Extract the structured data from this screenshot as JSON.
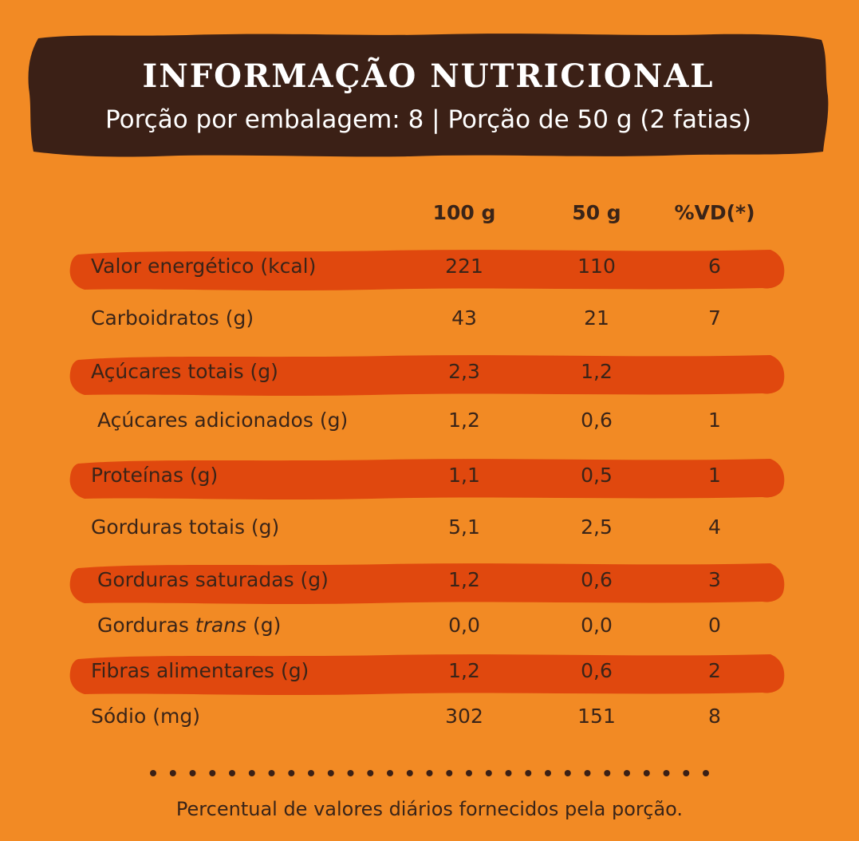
{
  "header": {
    "title": "INFORMAÇÃO NUTRICIONAL",
    "subtitle": "Porção por embalagem: 8 | Porção de 50 g (2 fatias)"
  },
  "columns": {
    "per_100g": "100 g",
    "per_50g": "50 g",
    "vd": "%VD(*)"
  },
  "rows": [
    {
      "label": "Valor energético (kcal)",
      "v100": "221",
      "v50": "110",
      "vd": "6",
      "highlighted": true,
      "indent": false
    },
    {
      "label": "Carboidratos (g)",
      "v100": "43",
      "v50": "21",
      "vd": "7",
      "highlighted": false,
      "indent": false
    },
    {
      "label": "Açúcares totais (g)",
      "v100": "2,3",
      "v50": "1,2",
      "vd": "",
      "highlighted": true,
      "indent": false
    },
    {
      "label": "Açúcares adicionados (g)",
      "v100": "1,2",
      "v50": "0,6",
      "vd": "1",
      "highlighted": false,
      "indent": true
    },
    {
      "label": "Proteínas (g)",
      "v100": "1,1",
      "v50": "0,5",
      "vd": "1",
      "highlighted": true,
      "indent": false
    },
    {
      "label": "Gorduras totais (g)",
      "v100": "5,1",
      "v50": "2,5",
      "vd": "4",
      "highlighted": false,
      "indent": false
    },
    {
      "label": "Gorduras saturadas (g)",
      "v100": "1,2",
      "v50": "0,6",
      "vd": "3",
      "highlighted": true,
      "indent": true
    },
    {
      "label_prefix": "Gorduras ",
      "label_italic": "trans",
      "label_suffix": " (g)",
      "v100": "0,0",
      "v50": "0,0",
      "vd": "0",
      "highlighted": false,
      "indent": true
    },
    {
      "label": "Fibras alimentares (g)",
      "v100": "1,2",
      "v50": "0,6",
      "vd": "2",
      "highlighted": true,
      "indent": false
    },
    {
      "label": "Sódio (mg)",
      "v100": "302",
      "v50": "151",
      "vd": "8",
      "highlighted": false,
      "indent": false
    }
  ],
  "footnote": "Percentual de valores diários fornecidos pela porção.",
  "colors": {
    "background": "#f28a24",
    "header_band": "#3b2016",
    "highlight_stripe": "#e0480e",
    "text": "#3a2418"
  }
}
